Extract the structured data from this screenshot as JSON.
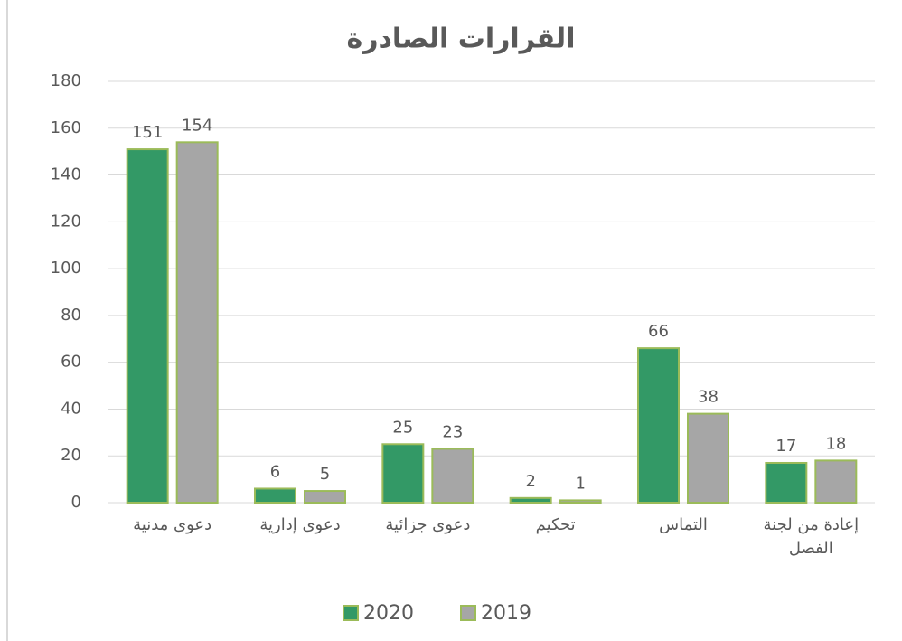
{
  "chart_data": {
    "type": "bar",
    "title": "القرارات الصادرة",
    "categories": [
      "دعوى مدنية",
      "دعوى إدارية",
      "دعوى جزائية",
      "تحكيم",
      "التماس",
      "إعادة من لجنة الفصل"
    ],
    "series": [
      {
        "name": "2020",
        "color": "#339966",
        "values": [
          151,
          6,
          25,
          2,
          66,
          17
        ]
      },
      {
        "name": "2019",
        "color": "#a6a6a6",
        "values": [
          154,
          5,
          23,
          1,
          38,
          18
        ]
      }
    ],
    "ylim": [
      0,
      180
    ],
    "yticks": [
      0,
      20,
      40,
      60,
      80,
      100,
      120,
      140,
      160,
      180
    ],
    "grid": true,
    "legend": "bottom"
  }
}
